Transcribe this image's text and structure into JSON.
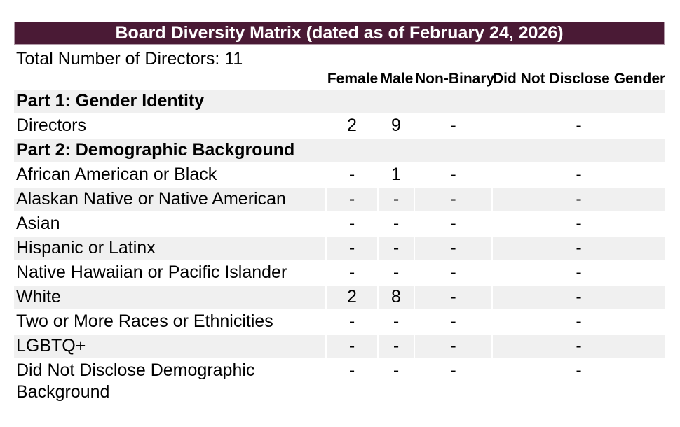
{
  "colors": {
    "title_bar_bg": "#4A1A35",
    "title_bar_border": "#B19BA8",
    "title_bar_text": "#FFFFFF",
    "row_shading": "#F0F0F0",
    "text": "#000000"
  },
  "title_bar": {
    "label": "Board Diversity Matrix (dated as of February 24, 2026)"
  },
  "summary": {
    "label": "Total Number of Directors: 11"
  },
  "matrix": {
    "columns": [
      "Female",
      "Male",
      "Non-Binary",
      "Did Not Disclose Gender"
    ],
    "rows": [
      {
        "type": "section",
        "label": "Part 1: Gender Identity"
      },
      {
        "type": "data",
        "label": "Directors",
        "values": [
          "2",
          "9",
          "-",
          "-"
        ]
      },
      {
        "type": "section",
        "label": "Part 2: Demographic Background"
      },
      {
        "type": "data",
        "label": "African American or Black",
        "values": [
          "-",
          "1",
          "-",
          "-"
        ]
      },
      {
        "type": "data",
        "label": "Alaskan Native or Native American",
        "values": [
          "-",
          "-",
          "-",
          "-"
        ]
      },
      {
        "type": "data",
        "label": "Asian",
        "values": [
          "-",
          "-",
          "-",
          "-"
        ]
      },
      {
        "type": "data",
        "label": "Hispanic or Latinx",
        "values": [
          "-",
          "-",
          "-",
          "-"
        ]
      },
      {
        "type": "data",
        "label": "Native Hawaiian or Pacific Islander",
        "values": [
          "-",
          "-",
          "-",
          "-"
        ]
      },
      {
        "type": "data",
        "label": "White",
        "values": [
          "2",
          "8",
          "-",
          "-"
        ]
      },
      {
        "type": "data",
        "label": "Two or More Races or Ethnicities",
        "values": [
          "-",
          "-",
          "-",
          "-"
        ]
      },
      {
        "type": "data",
        "label": "LGBTQ+",
        "values": [
          "-",
          "-",
          "-",
          "-"
        ]
      },
      {
        "type": "data",
        "label": "Did Not Disclose Demographic Background",
        "values": [
          "-",
          "-",
          "-",
          "-"
        ]
      }
    ]
  }
}
